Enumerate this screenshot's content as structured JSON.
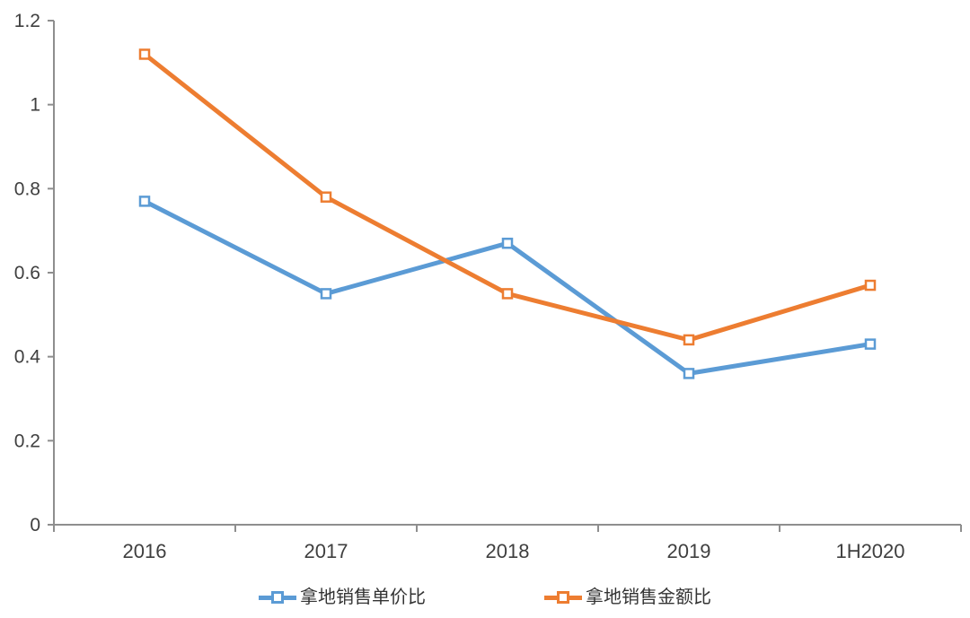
{
  "chart_data": {
    "type": "line",
    "title": "",
    "categories": [
      "2016",
      "2017",
      "2018",
      "2019",
      "1H2020"
    ],
    "series": [
      {
        "name": "拿地销售单价比",
        "color": "#5B9BD5",
        "values": [
          0.77,
          0.55,
          0.67,
          0.36,
          0.43
        ]
      },
      {
        "name": "拿地销售金额比",
        "color": "#ED7D31",
        "values": [
          1.12,
          0.78,
          0.55,
          0.44,
          0.57
        ]
      }
    ],
    "xlabel": "",
    "ylabel": "",
    "ylim": [
      0,
      1.2
    ],
    "yticks": [
      0,
      0.2,
      0.4,
      0.6,
      0.8,
      1,
      1.2
    ],
    "ytick_labels": [
      "0",
      "0.2",
      "0.4",
      "0.6",
      "0.8",
      "1",
      "1.2"
    ],
    "grid": false,
    "legend_position": "bottom",
    "marker": "hollow-square",
    "style": {
      "axis_color": "#8E8E8E",
      "tick_label_color": "#3F3F3F",
      "legend_text_color": "#333333",
      "background": "#FFFFFF",
      "line_width": 5,
      "marker_size": 10
    }
  }
}
